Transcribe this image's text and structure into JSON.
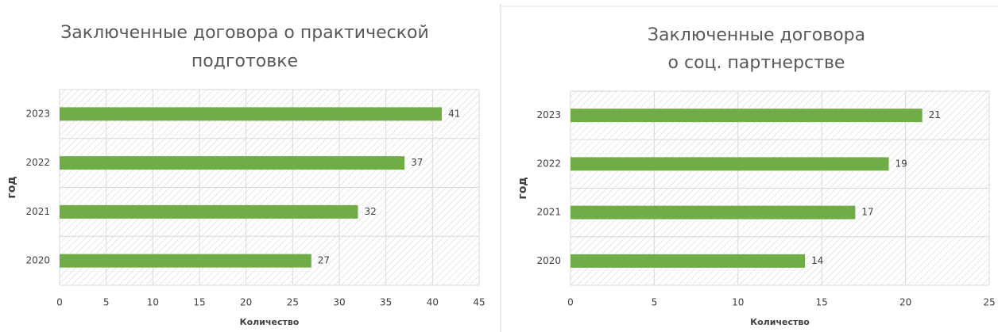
{
  "chart_data": [
    {
      "type": "barh",
      "title": [
        "Заключенные договора о практической",
        "подготовке"
      ],
      "categories": [
        "2023",
        "2022",
        "2021",
        "2020"
      ],
      "values": [
        41,
        37,
        32,
        27
      ],
      "color": "#70ad47",
      "xlim": [
        0,
        45
      ],
      "xticks": [
        0,
        5,
        10,
        15,
        20,
        25,
        30,
        35,
        40,
        45
      ],
      "xlabel": "Количество",
      "ylabel": "год",
      "grid": true
    },
    {
      "type": "barh",
      "title": [
        "Заключенные договора",
        "о соц. партнерстве"
      ],
      "categories": [
        "2023",
        "2022",
        "2021",
        "2020"
      ],
      "values": [
        21,
        19,
        17,
        14
      ],
      "color": "#70ad47",
      "xlim": [
        0,
        25
      ],
      "xticks": [
        0,
        5,
        10,
        15,
        20,
        25
      ],
      "xlabel": "Количество",
      "ylabel": "год",
      "grid": true
    }
  ]
}
